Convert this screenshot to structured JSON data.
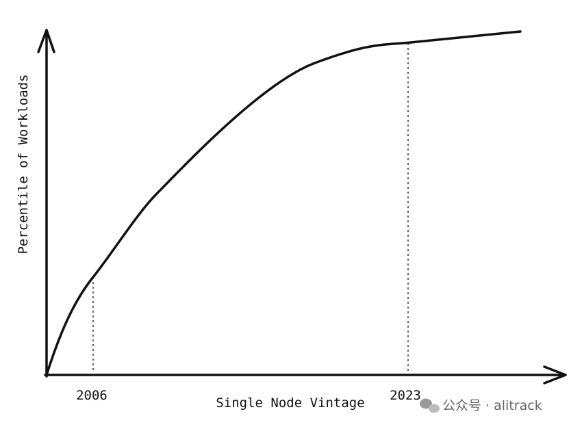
{
  "axes": {
    "x_label": "Single Node Vintage",
    "y_label": "Percentile of Workloads"
  },
  "markers": [
    {
      "label": "2006"
    },
    {
      "label": "2023"
    }
  ],
  "watermark": "公众号 · alitrack"
}
